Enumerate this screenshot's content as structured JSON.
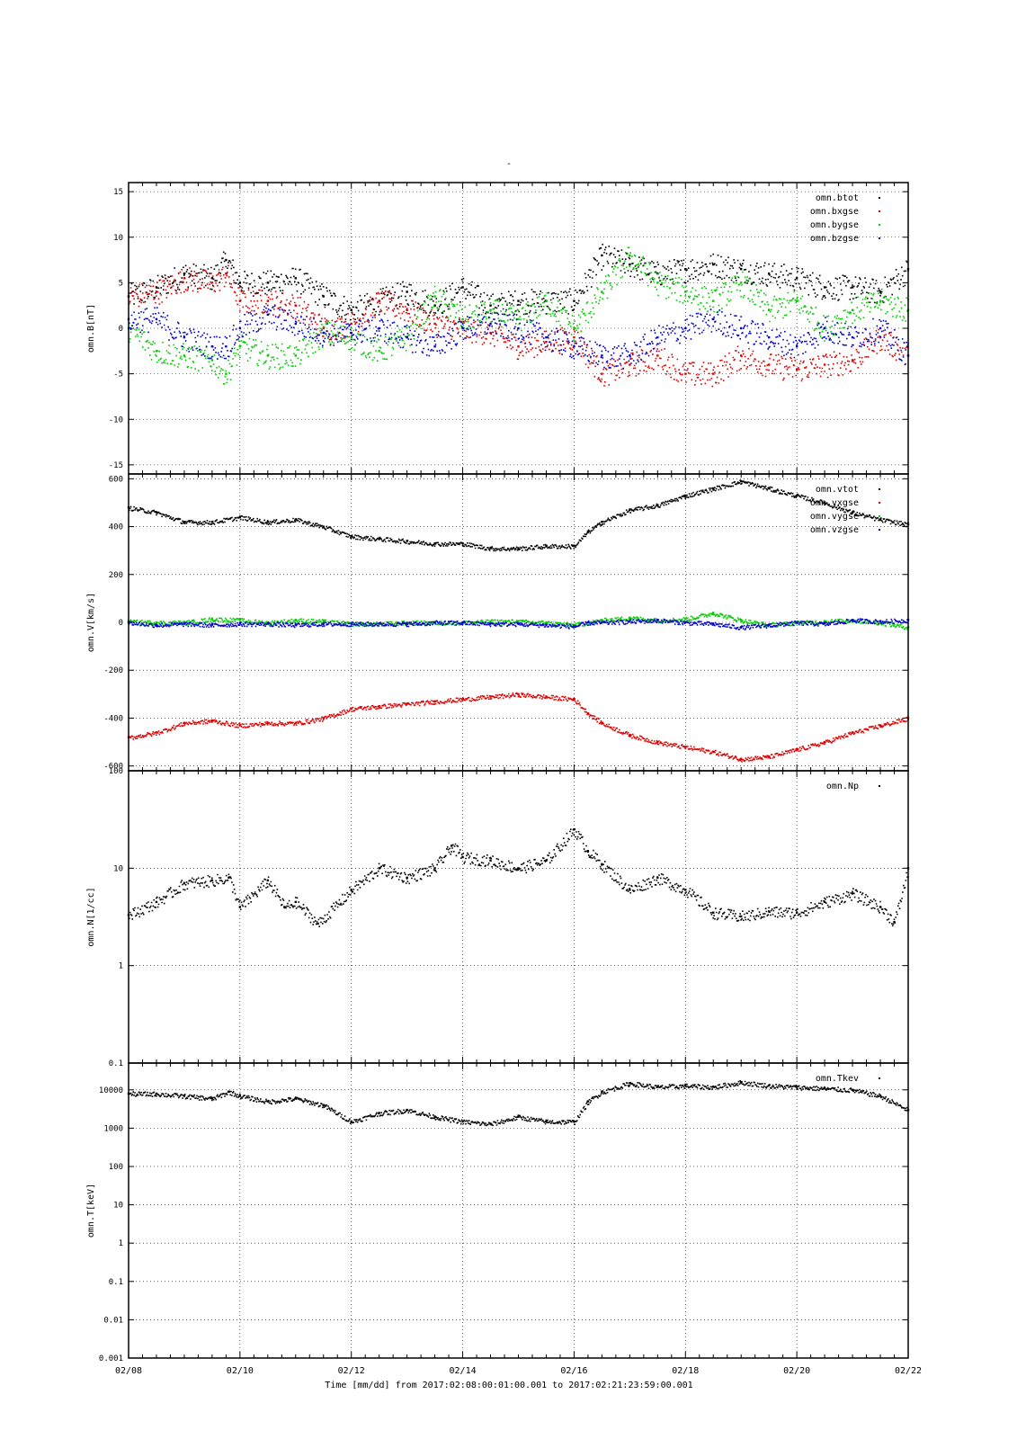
{
  "figure": {
    "title": "-",
    "x_axis_label": "Time [mm/dd]  from 2017:02:08:00:01:00.001  to  2017:02:21:23:59:00.001",
    "x_tick_labels": [
      "02/08",
      "02/10",
      "02/12",
      "02/14",
      "02/16",
      "02/18",
      "02/20",
      "02/22"
    ]
  },
  "chart_data": [
    {
      "type": "scatter",
      "ylabel": "omn.B[nT]",
      "ylim": [
        -16,
        16
      ],
      "yscale": "linear",
      "ytick_values": [
        -15,
        -10,
        -5,
        0,
        5,
        10,
        15
      ],
      "ytick_labels": [
        "-15",
        "-10",
        "-5",
        "0",
        "5",
        "10",
        "15"
      ],
      "xlim": [
        0,
        14
      ],
      "grid": true,
      "legend_position": "top-right",
      "series": [
        {
          "name": "omn.btot",
          "color": "#000000",
          "x": [
            0,
            0.5,
            1,
            1.5,
            1.75,
            2,
            2.5,
            3,
            3.5,
            4,
            4.5,
            5,
            5.5,
            6,
            6.5,
            7,
            7.5,
            8,
            8.5,
            9,
            9.5,
            10,
            10.5,
            11,
            11.5,
            12,
            12.5,
            13,
            13.5,
            14
          ],
          "y": [
            3.5,
            4.5,
            6,
            5.5,
            7.5,
            5,
            5,
            5.5,
            3.5,
            2,
            3,
            4,
            2.5,
            4.5,
            2.5,
            3,
            3,
            3,
            8,
            7,
            6,
            6.5,
            7,
            6.5,
            6,
            5.5,
            4.5,
            4.5,
            4,
            6.5
          ]
        },
        {
          "name": "omn.bxgse",
          "color": "#dd0000",
          "x": [
            0,
            0.5,
            1,
            1.5,
            1.75,
            2,
            2.5,
            3,
            3.5,
            4,
            4.5,
            5,
            5.5,
            6,
            6.5,
            7,
            7.5,
            8,
            8.5,
            9,
            9.5,
            10,
            10.5,
            11,
            11.5,
            12,
            12.5,
            13,
            13.5,
            14
          ],
          "y": [
            3.5,
            4,
            5.5,
            5,
            6,
            3,
            3,
            2.5,
            0,
            0.5,
            3,
            2,
            0.5,
            0,
            -0.5,
            -2,
            -1.5,
            -1,
            -5,
            -4,
            -3,
            -5,
            -5,
            -3,
            -4,
            -4.5,
            -4,
            -3.5,
            -1,
            -3
          ]
        },
        {
          "name": "omn.bygse",
          "color": "#00cc00",
          "x": [
            0,
            0.5,
            1,
            1.5,
            1.75,
            2,
            2.5,
            3,
            3.5,
            4,
            4.5,
            5,
            5.5,
            6,
            6.5,
            7,
            7.5,
            8,
            8.5,
            9,
            9.5,
            10,
            10.5,
            11,
            11.5,
            12,
            12.5,
            13,
            13.5,
            14
          ],
          "y": [
            0,
            -2.5,
            -3,
            -3.5,
            -5,
            -2,
            -3,
            -3,
            -0.5,
            -1,
            -2.5,
            -1,
            3.5,
            1,
            2,
            1,
            3,
            0,
            4,
            8,
            5,
            4,
            3,
            5,
            2,
            3,
            0,
            2,
            3,
            2
          ]
        },
        {
          "name": "omn.bzgse",
          "color": "#0000cc",
          "x": [
            0,
            0.5,
            1,
            1.5,
            1.75,
            2,
            2.5,
            3,
            3.5,
            4,
            4.5,
            5,
            5.5,
            6,
            6.5,
            7,
            7.5,
            8,
            8.5,
            9,
            9.5,
            10,
            10.5,
            11,
            11.5,
            12,
            12.5,
            13,
            13.5,
            14
          ],
          "y": [
            1,
            1,
            -1,
            -2,
            -2,
            0,
            1.5,
            0.5,
            -0.5,
            -0.5,
            0,
            -1,
            -2,
            0,
            0.5,
            0,
            -1,
            -2,
            -3,
            -3,
            -1,
            0,
            1,
            0,
            -1,
            -2,
            0,
            -1,
            0,
            -3
          ]
        }
      ]
    },
    {
      "type": "scatter",
      "ylabel": "omn.V[km/s]",
      "ylim": [
        -620,
        620
      ],
      "yscale": "linear",
      "ytick_values": [
        -600,
        -400,
        -200,
        0,
        200,
        400,
        600
      ],
      "ytick_labels": [
        "-600",
        "-400",
        "-200",
        "0",
        "200",
        "400",
        "600"
      ],
      "xlim": [
        0,
        14
      ],
      "grid": true,
      "legend_position": "top-right",
      "series": [
        {
          "name": "omn.vtot",
          "color": "#000000",
          "x": [
            0,
            0.5,
            1,
            1.5,
            2,
            2.5,
            3,
            3.5,
            4,
            4.5,
            5,
            5.5,
            6,
            6.5,
            7,
            7.5,
            8,
            8.25,
            8.5,
            9,
            9.5,
            10,
            10.5,
            11,
            11.5,
            12,
            12.5,
            13,
            13.5,
            14
          ],
          "y": [
            480,
            460,
            420,
            420,
            440,
            420,
            430,
            400,
            360,
            350,
            340,
            330,
            330,
            310,
            310,
            320,
            320,
            380,
            420,
            470,
            490,
            530,
            560,
            590,
            560,
            530,
            500,
            460,
            430,
            410
          ]
        },
        {
          "name": "omn.vxgse",
          "color": "#dd0000",
          "x": [
            0,
            0.5,
            1,
            1.5,
            2,
            2.5,
            3,
            3.5,
            4,
            4.5,
            5,
            5.5,
            6,
            6.5,
            7,
            7.5,
            8,
            8.25,
            8.5,
            9,
            9.5,
            10,
            10.5,
            11,
            11.5,
            12,
            12.5,
            13,
            13.5,
            14
          ],
          "y": [
            -480,
            -460,
            -420,
            -410,
            -430,
            -420,
            -420,
            -400,
            -360,
            -350,
            -340,
            -330,
            -320,
            -310,
            -300,
            -310,
            -320,
            -380,
            -420,
            -470,
            -500,
            -520,
            -540,
            -570,
            -560,
            -530,
            -500,
            -460,
            -430,
            -400
          ]
        },
        {
          "name": "omn.vygse",
          "color": "#00cc00",
          "x": [
            0,
            0.5,
            1,
            1.5,
            2,
            2.5,
            3,
            3.5,
            4,
            4.5,
            5,
            5.5,
            6,
            6.5,
            7,
            7.5,
            8,
            8.25,
            8.5,
            9,
            9.5,
            10,
            10.5,
            11,
            11.5,
            12,
            12.5,
            13,
            13.5,
            14
          ],
          "y": [
            5,
            0,
            0,
            15,
            10,
            0,
            10,
            5,
            -5,
            -5,
            0,
            0,
            0,
            5,
            5,
            0,
            -10,
            0,
            10,
            20,
            10,
            15,
            40,
            10,
            -10,
            0,
            5,
            10,
            0,
            -20
          ]
        },
        {
          "name": "omn.vzgse",
          "color": "#0000cc",
          "x": [
            0,
            0.5,
            1,
            1.5,
            2,
            2.5,
            3,
            3.5,
            4,
            4.5,
            5,
            5.5,
            6,
            6.5,
            7,
            7.5,
            8,
            8.25,
            8.5,
            9,
            9.5,
            10,
            10.5,
            11,
            11.5,
            12,
            12.5,
            13,
            13.5,
            14
          ],
          "y": [
            0,
            -10,
            -5,
            -10,
            -5,
            -5,
            -10,
            -5,
            -5,
            -5,
            -5,
            0,
            0,
            -5,
            -5,
            -10,
            -15,
            0,
            0,
            5,
            10,
            0,
            -5,
            -20,
            -10,
            0,
            -5,
            10,
            5,
            10
          ]
        }
      ]
    },
    {
      "type": "scatter",
      "ylabel": "omn.N[1/cc]",
      "ylim": [
        0.1,
        100
      ],
      "yscale": "log",
      "ytick_values": [
        0.1,
        1,
        10,
        100
      ],
      "ytick_labels": [
        "0.1",
        "1",
        "10",
        "100"
      ],
      "xlim": [
        0,
        14
      ],
      "grid": true,
      "legend_position": "top-right",
      "series": [
        {
          "name": "omn.Np",
          "color": "#000000",
          "x": [
            0,
            0.5,
            1,
            1.5,
            1.8,
            2,
            2.5,
            2.8,
            3,
            3.4,
            4,
            4.5,
            5,
            5.5,
            5.8,
            6,
            6.5,
            7,
            7.5,
            8,
            8.25,
            8.5,
            9,
            9.5,
            10,
            10.5,
            11,
            11.5,
            12,
            12.5,
            13,
            13.5,
            13.75,
            14
          ],
          "y": [
            3.3,
            4.5,
            7,
            7.5,
            8,
            4,
            7.5,
            4,
            4.5,
            2.7,
            6,
            10,
            8,
            10,
            17,
            13,
            12,
            10,
            12,
            25,
            15,
            11,
            6,
            8,
            6,
            3.5,
            3.2,
            3.6,
            3.5,
            4.5,
            5.5,
            4,
            2.8,
            10
          ]
        }
      ]
    },
    {
      "type": "scatter",
      "ylabel": "omn.T[keV]",
      "ylim": [
        0.001,
        50000
      ],
      "yscale": "log",
      "ytick_values": [
        0.001,
        0.01,
        0.1,
        1,
        10,
        100,
        1000,
        10000
      ],
      "ytick_labels": [
        "0.001",
        "0.01",
        "0.1",
        "1",
        "10",
        "100",
        "1000",
        "10000"
      ],
      "xlim": [
        0,
        14
      ],
      "grid": true,
      "legend_position": "top-right",
      "series": [
        {
          "name": "omn.Tkev",
          "color": "#000000",
          "x": [
            0,
            0.5,
            1,
            1.5,
            1.8,
            2,
            2.5,
            3,
            3.5,
            4,
            4.5,
            5,
            5.5,
            6,
            6.5,
            7,
            7.5,
            8,
            8.25,
            8.5,
            9,
            9.5,
            10,
            10.5,
            11,
            11.5,
            12,
            12.5,
            13,
            13.5,
            14
          ],
          "y": [
            8000,
            8000,
            7000,
            6000,
            9000,
            7000,
            5000,
            6000,
            4000,
            1500,
            2500,
            3000,
            2000,
            1500,
            1300,
            2000,
            1500,
            1500,
            5000,
            9000,
            15000,
            12000,
            13000,
            12000,
            16000,
            13000,
            12000,
            11000,
            10000,
            7000,
            3000
          ]
        }
      ]
    }
  ]
}
